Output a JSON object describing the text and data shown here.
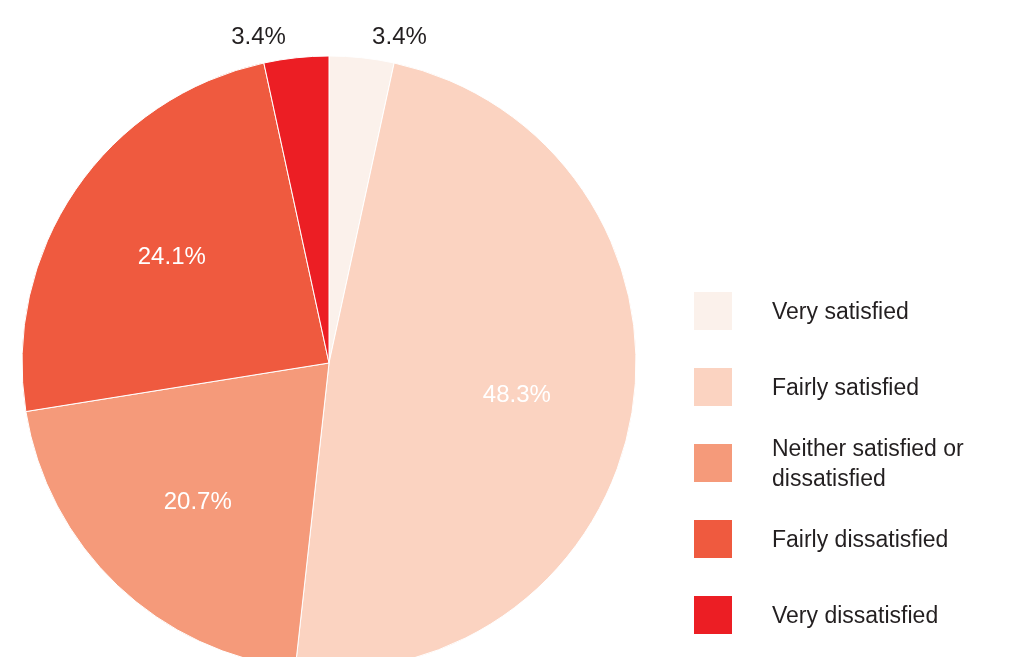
{
  "chart_data": {
    "type": "pie",
    "categories": [
      "Very satisfied",
      "Fairly satisfied",
      "Neither satisfied or dissatisfied",
      "Fairly dissatisfied",
      "Very dissatisfied"
    ],
    "values": [
      3.4,
      48.3,
      20.7,
      24.1,
      3.4
    ],
    "colors": [
      "#fbf1eb",
      "#fbd3c1",
      "#f59a7a",
      "#ef5a3f",
      "#ec1e24"
    ],
    "value_labels": [
      "3.4%",
      "48.3%",
      "20.7%",
      "24.1%",
      "3.4%"
    ],
    "legend": "right"
  }
}
